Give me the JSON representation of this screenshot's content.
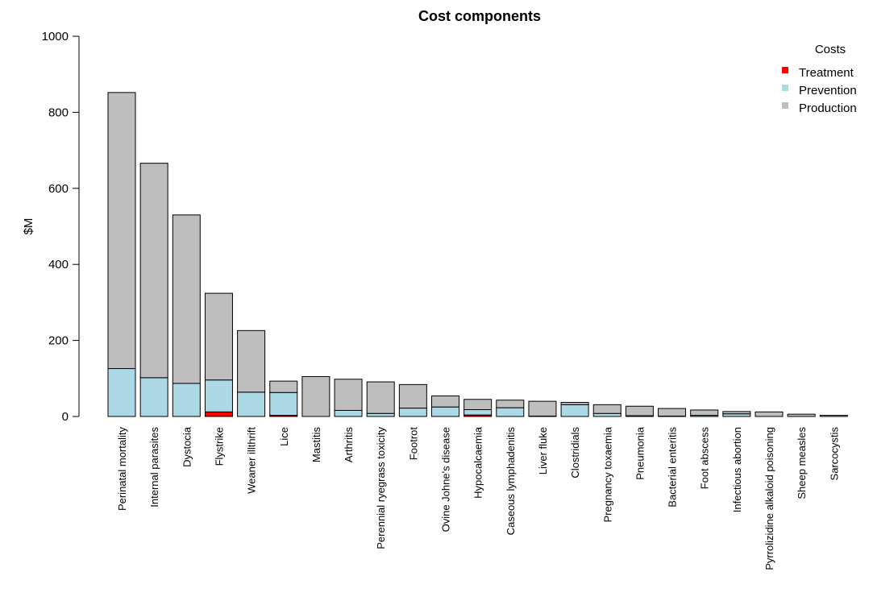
{
  "chart_data": {
    "type": "bar",
    "stacked": true,
    "title": "Cost components",
    "xlabel": "",
    "ylabel": "$M",
    "ylim": [
      0,
      1000
    ],
    "yticks": [
      0,
      200,
      400,
      600,
      800,
      1000
    ],
    "grid": false,
    "legend": {
      "title": "Costs",
      "position": "top-right",
      "entries": [
        "Treatment",
        "Prevention",
        "Production"
      ]
    },
    "categories": [
      "Perinatal mortality",
      "Internal parasites",
      "Dystocia",
      "Flystrike",
      "Weaner illthrift",
      "Lice",
      "Mastitis",
      "Arthritis",
      "Perennial ryegrass toxicity",
      "Footrot",
      "Ovine Johne's disease",
      "Hypocalcaemia",
      "Caseous lymphadenitis",
      "Liver fluke",
      "Clostridials",
      "Pregnancy toxaemia",
      "Pneumonia",
      "Bacterial enteritis",
      "Foot abscess",
      "Infectious abortion",
      "Pyrrolizidine alkaloid poisoning",
      "Sheep measles",
      "Sarcocystis"
    ],
    "series": [
      {
        "name": "Treatment",
        "color": "#ff0000",
        "values": [
          0,
          0,
          0,
          12,
          0,
          3,
          0,
          0,
          0,
          0,
          0,
          4,
          0,
          0,
          0,
          0,
          0,
          0,
          0,
          0,
          0,
          0,
          0
        ]
      },
      {
        "name": "Prevention",
        "color": "#add8e6",
        "values": [
          126,
          102,
          87,
          84,
          64,
          60,
          0,
          16,
          8,
          22,
          25,
          14,
          23,
          1,
          31,
          8,
          2,
          1,
          3,
          7,
          0,
          0,
          0
        ]
      },
      {
        "name": "Production",
        "color": "#bebebe",
        "values": [
          726,
          564,
          443,
          228,
          162,
          30,
          105,
          82,
          83,
          62,
          29,
          27,
          20,
          39,
          6,
          23,
          25,
          20,
          14,
          6,
          12,
          6,
          3
        ]
      }
    ]
  }
}
